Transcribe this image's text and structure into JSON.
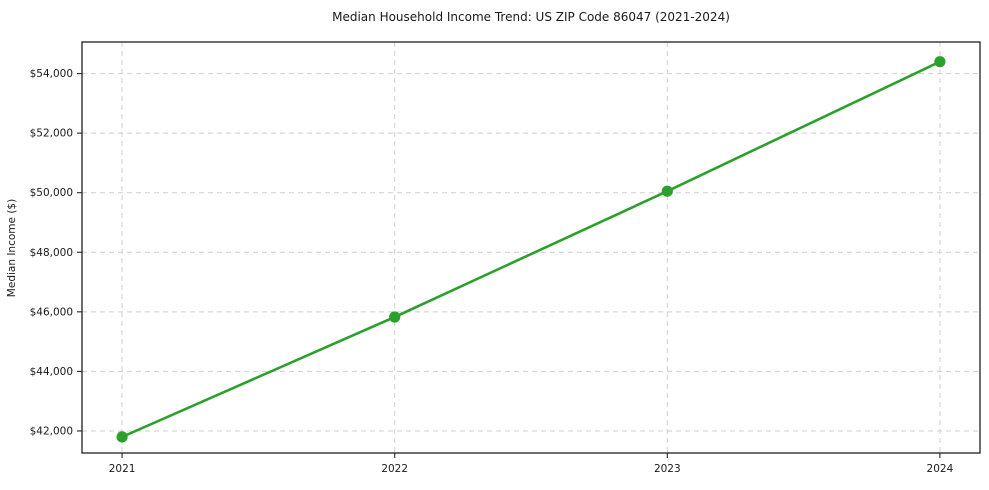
{
  "chart": {
    "title": "Median Household Income Trend: US ZIP Code 86047 (2021-2024)",
    "ylabel": "Median Income ($)"
  },
  "chart_data": {
    "type": "line",
    "title": "Median Household Income Trend: US ZIP Code 86047 (2021-2024)",
    "xlabel": "",
    "ylabel": "Median Income ($)",
    "x": [
      2021,
      2022,
      2023,
      2024
    ],
    "xtick_labels": [
      "2021",
      "2022",
      "2023",
      "2024"
    ],
    "series": [
      {
        "name": "Median Household Income",
        "values": [
          41800,
          45825,
          50050,
          54400
        ]
      }
    ],
    "yticks": [
      42000,
      44000,
      46000,
      48000,
      50000,
      52000,
      54000
    ],
    "ytick_labels": [
      "$42,000",
      "$44,000",
      "$46,000",
      "$48,000",
      "$50,000",
      "$52,000",
      "$54,000"
    ],
    "xlim": [
      2020.853,
      2024.147
    ],
    "ylim": [
      41260,
      55060
    ],
    "grid": true,
    "grid_style": "dashed",
    "legend": false,
    "line_color": "#2ca02c",
    "marker": "circle",
    "background": "#ffffff"
  }
}
